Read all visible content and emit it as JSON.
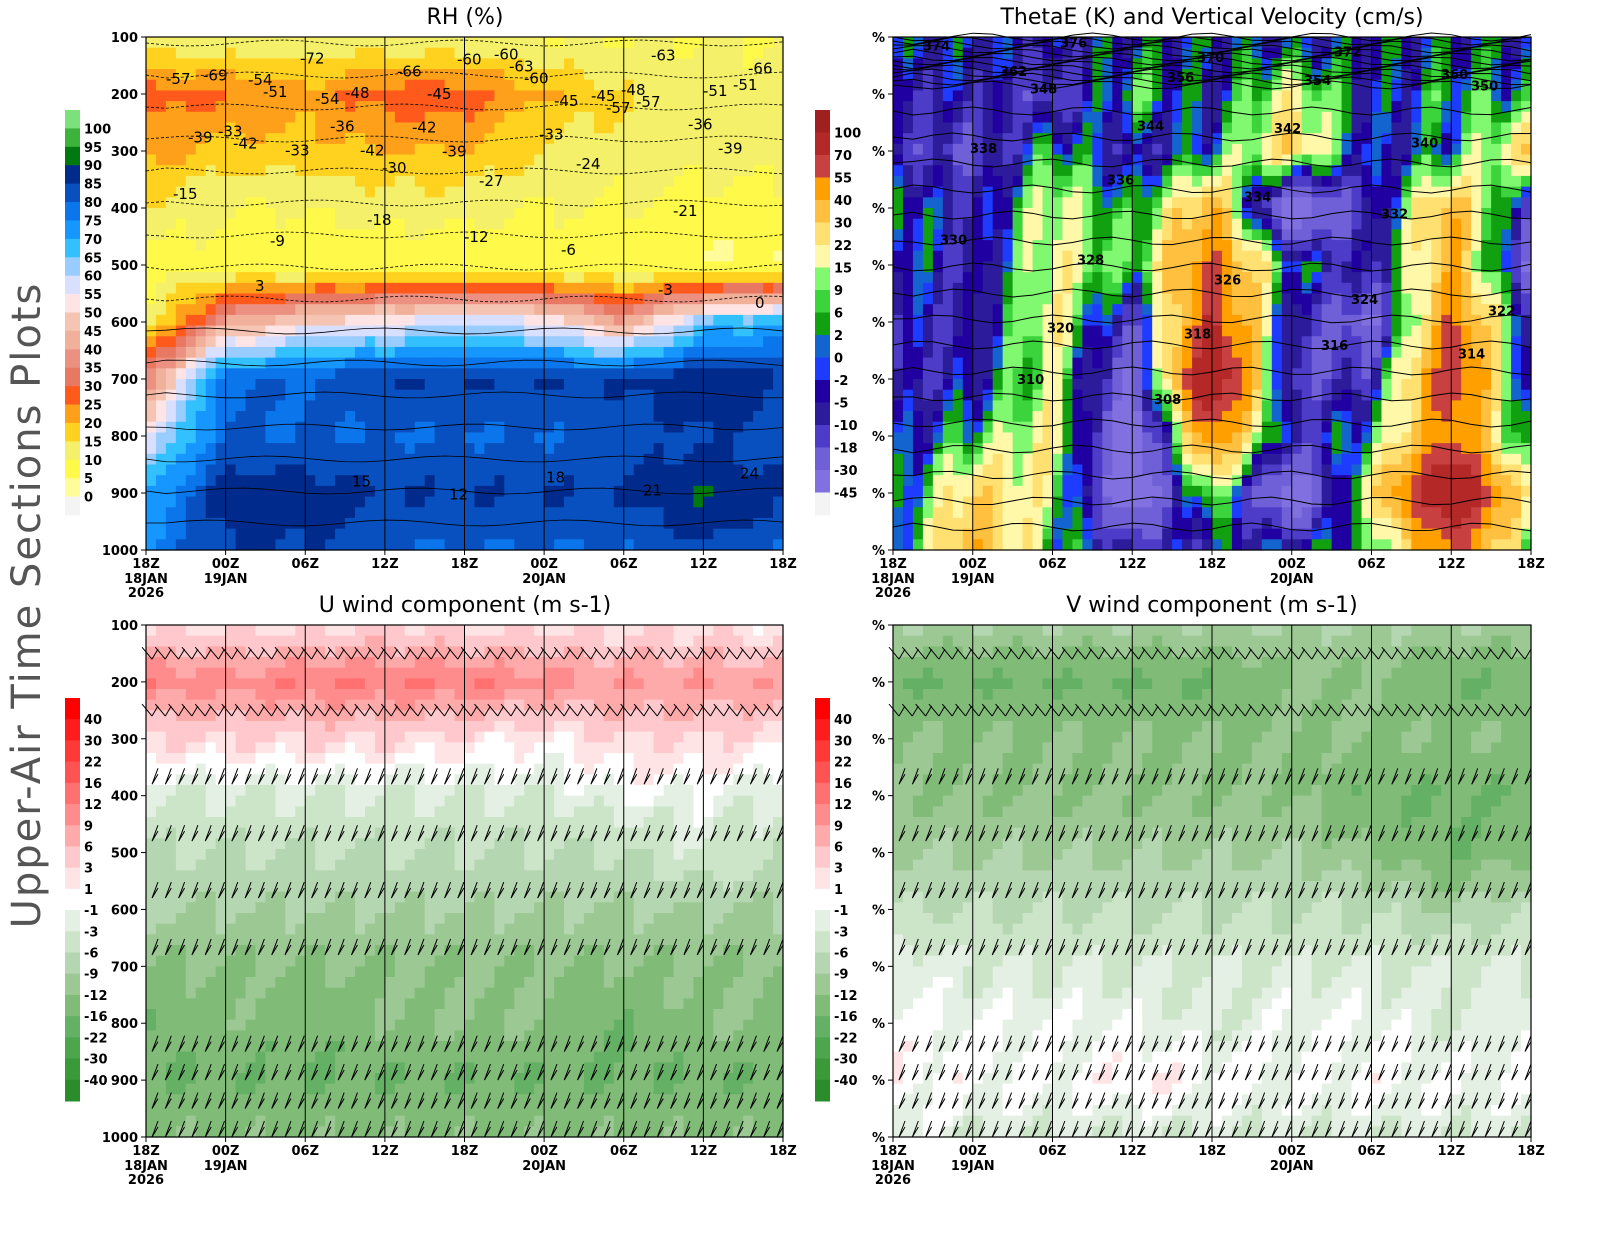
{
  "side_title": "Upper-Air Time Sections Plots",
  "chart_data": [
    {
      "type": "heatmap",
      "title": "RH (%)",
      "y_tick_labels": [
        "100",
        "200",
        "300",
        "400",
        "500",
        "600",
        "700",
        "800",
        "900",
        "1000"
      ],
      "x_tick_labels": [
        "18Z",
        "00Z",
        "06Z",
        "12Z",
        "18Z",
        "00Z",
        "06Z",
        "12Z",
        "18Z"
      ],
      "x_date_labels": [
        "18JAN\n2026",
        "19JAN",
        "",
        "",
        "",
        "20JAN",
        "",
        "",
        ""
      ],
      "pressure_levels": [
        100,
        200,
        300,
        400,
        500,
        600,
        700,
        800,
        900,
        1000
      ],
      "ylim": [
        1000,
        100
      ],
      "levels": [
        0,
        5,
        10,
        15,
        20,
        25,
        30,
        35,
        40,
        45,
        50,
        55,
        60,
        65,
        70,
        75,
        80,
        85,
        90,
        95,
        100
      ],
      "colors": [
        "#f4f4f4",
        "#fffc99",
        "#fff94a",
        "#f4f06a",
        "#ffd21f",
        "#ffa01a",
        "#ff5a1c",
        "#e87862",
        "#ec9182",
        "#f0b09a",
        "#f6c4b2",
        "#ffe4e6",
        "#d9e0ff",
        "#99ccff",
        "#33c0ff",
        "#1696ff",
        "#0b75ec",
        "#0850c0",
        "#002a8c",
        "#007a10",
        "#3cb43c",
        "#7ce07c"
      ],
      "grid": [
        [
          10,
          10,
          10,
          10,
          10,
          10,
          10,
          10,
          10
        ],
        [
          28,
          25,
          22,
          28,
          28,
          20,
          15,
          12,
          12
        ],
        [
          22,
          18,
          18,
          20,
          20,
          15,
          12,
          12,
          12
        ],
        [
          14,
          10,
          10,
          12,
          12,
          10,
          10,
          8,
          8
        ],
        [
          8,
          8,
          6,
          6,
          6,
          6,
          6,
          5,
          5
        ],
        [
          10,
          40,
          50,
          55,
          60,
          55,
          40,
          65,
          70
        ],
        [
          35,
          80,
          80,
          85,
          85,
          85,
          85,
          90,
          85
        ],
        [
          55,
          80,
          80,
          80,
          80,
          80,
          82,
          85,
          82
        ],
        [
          70,
          88,
          88,
          85,
          85,
          85,
          85,
          90,
          85
        ],
        [
          75,
          85,
          85,
          80,
          80,
          80,
          80,
          85,
          80
        ]
      ],
      "y_axis_labels_as": "pressure",
      "contour_labels": [
        "-57",
        "-51",
        "-42",
        "-60",
        "-45",
        "-63",
        "-66",
        "-54",
        "-48",
        "-39",
        "-33",
        "-57",
        "-51",
        "-42",
        "-36",
        "-45",
        "-60",
        "-48",
        "-39",
        "-33",
        "-54",
        "-42",
        "-63",
        "-57",
        "-51",
        "-69",
        "-72",
        "-66",
        "-60",
        "-45",
        "-36",
        "-39",
        "-33",
        "-30",
        "-27",
        "-24",
        "-21",
        "-15",
        "-9",
        "-18",
        "-12",
        "-6",
        "-3",
        "0",
        "3",
        "15",
        "12",
        "18",
        "21",
        "24"
      ]
    },
    {
      "type": "heatmap",
      "title": "ThetaE (K) and Vertical Velocity (cm/s)",
      "y_tick_labels": [
        "%",
        "%",
        "%",
        "%",
        "%",
        "%",
        "%",
        "%",
        "%",
        "%"
      ],
      "x_tick_labels": [
        "18Z",
        "00Z",
        "06Z",
        "12Z",
        "18Z",
        "00Z",
        "06Z",
        "12Z",
        "18Z"
      ],
      "x_date_labels": [
        "18JAN\n2026",
        "19JAN",
        "",
        "",
        "",
        "20JAN",
        "",
        "",
        ""
      ],
      "pressure_levels": [
        100,
        200,
        300,
        400,
        500,
        600,
        700,
        800,
        900,
        1000
      ],
      "levels": [
        -45,
        -30,
        -18,
        -10,
        -5,
        -2,
        0,
        2,
        6,
        9,
        15,
        22,
        30,
        40,
        55,
        70,
        100
      ],
      "colors": [
        "#f4f4f4",
        "#8070e0",
        "#7060d8",
        "#4c3cc8",
        "#2c1c9c",
        "#2000a0",
        "#1e3cff",
        "#1464d0",
        "#10a010",
        "#3cd43c",
        "#80f870",
        "#fff8a8",
        "#ffe070",
        "#ffc040",
        "#ffa000",
        "#c84040",
        "#b42828",
        "#a02020"
      ],
      "grid": [
        [
          0,
          -2,
          -5,
          -2,
          0,
          -5,
          -2,
          0,
          -2
        ],
        [
          -10,
          -5,
          -18,
          9,
          -5,
          20,
          -5,
          6,
          2
        ],
        [
          -10,
          -18,
          6,
          -10,
          2,
          30,
          -5,
          2,
          30
        ],
        [
          6,
          -10,
          20,
          2,
          40,
          -45,
          -10,
          40,
          -18
        ],
        [
          2,
          -10,
          20,
          6,
          55,
          2,
          -10,
          40,
          -30
        ],
        [
          -5,
          -10,
          22,
          -18,
          70,
          -10,
          -30,
          55,
          -5
        ],
        [
          -10,
          -5,
          15,
          -30,
          100,
          -18,
          -10,
          70,
          -10
        ],
        [
          -5,
          6,
          22,
          -45,
          55,
          -10,
          6,
          55,
          -5
        ],
        [
          -5,
          30,
          15,
          -45,
          15,
          -45,
          22,
          100,
          15
        ],
        [
          -2,
          40,
          6,
          -10,
          -5,
          0,
          2,
          55,
          6
        ]
      ],
      "thetae_contours": [
        {
          "value": "374",
          "p": 115
        },
        {
          "value": "376",
          "p": 110
        },
        {
          "value": "370",
          "p": 135
        },
        {
          "value": "372",
          "p": 125
        },
        {
          "value": "350",
          "p": 185
        },
        {
          "value": "348",
          "p": 190
        },
        {
          "value": "356",
          "p": 170
        },
        {
          "value": "354",
          "p": 175
        },
        {
          "value": "360",
          "p": 165
        },
        {
          "value": "362",
          "p": 160
        },
        {
          "value": "344",
          "p": 255
        },
        {
          "value": "342",
          "p": 260
        },
        {
          "value": "340",
          "p": 285
        },
        {
          "value": "338",
          "p": 295
        },
        {
          "value": "336",
          "p": 350
        },
        {
          "value": "334",
          "p": 380
        },
        {
          "value": "332",
          "p": 410
        },
        {
          "value": "330",
          "p": 455
        },
        {
          "value": "328",
          "p": 490
        },
        {
          "value": "326",
          "p": 525
        },
        {
          "value": "324",
          "p": 560
        },
        {
          "value": "322",
          "p": 580
        },
        {
          "value": "320",
          "p": 610
        },
        {
          "value": "318",
          "p": 620
        },
        {
          "value": "316",
          "p": 640
        },
        {
          "value": "314",
          "p": 655
        },
        {
          "value": "310",
          "p": 700
        },
        {
          "value": "308",
          "p": 735
        }
      ]
    },
    {
      "type": "heatmap",
      "title": "U wind component (m s-1)",
      "y_tick_labels": [
        "100",
        "200",
        "300",
        "400",
        "500",
        "600",
        "700",
        "800",
        "900",
        "1000"
      ],
      "x_tick_labels": [
        "18Z",
        "00Z",
        "06Z",
        "12Z",
        "18Z",
        "00Z",
        "06Z",
        "12Z",
        "18Z"
      ],
      "x_date_labels": [
        "18JAN\n2026",
        "19JAN",
        "",
        "",
        "",
        "20JAN",
        "",
        "",
        ""
      ],
      "pressure_levels": [
        100,
        200,
        300,
        400,
        500,
        600,
        700,
        800,
        900,
        1000
      ],
      "levels": [
        -40,
        -30,
        -22,
        -16,
        -12,
        -9,
        -6,
        -3,
        -1,
        1,
        3,
        6,
        9,
        12,
        16,
        22,
        30,
        40
      ],
      "colors": [
        "#2a8c2a",
        "#3a9a3a",
        "#4ca64c",
        "#64b064",
        "#80bc78",
        "#9cc894",
        "#b4d6b0",
        "#cce4c8",
        "#e4f0e4",
        "#ffffff",
        "#ffe4e6",
        "#ffc8cc",
        "#ffaaaa",
        "#ff8c8c",
        "#ff7070",
        "#ff5252",
        "#ff3838",
        "#ff1c1c",
        "#ff0000"
      ],
      "grid": [
        [
          2,
          2,
          2,
          3,
          2,
          2,
          2,
          2,
          1
        ],
        [
          12,
          10,
          12,
          12,
          12,
          10,
          9,
          9,
          8
        ],
        [
          3,
          3,
          3,
          3,
          2,
          1,
          3,
          3,
          2
        ],
        [
          -3,
          -3,
          -3,
          -3,
          -3,
          -3,
          -1,
          -1,
          -3
        ],
        [
          -6,
          -6,
          -6,
          -6,
          -6,
          -6,
          -6,
          -3,
          -6
        ],
        [
          -9,
          -9,
          -9,
          -9,
          -9,
          -9,
          -9,
          -9,
          -9
        ],
        [
          -12,
          -12,
          -12,
          -12,
          -12,
          -12,
          -12,
          -12,
          -12
        ],
        [
          -16,
          -12,
          -16,
          -12,
          -12,
          -12,
          -16,
          -12,
          -12
        ],
        [
          -16,
          -16,
          -16,
          -16,
          -16,
          -16,
          -16,
          -16,
          -16
        ],
        [
          -12,
          -12,
          -12,
          -12,
          -12,
          -12,
          -12,
          -12,
          -12
        ]
      ],
      "wind_barb_levels": [
        160,
        260,
        380,
        480,
        580,
        680,
        850,
        900,
        950,
        1000
      ]
    },
    {
      "type": "heatmap",
      "title": "V wind component (m s-1)",
      "y_tick_labels": [
        "%",
        "%",
        "%",
        "%",
        "%",
        "%",
        "%",
        "%",
        "%",
        "%"
      ],
      "x_tick_labels": [
        "18Z",
        "00Z",
        "06Z",
        "12Z",
        "18Z",
        "00Z",
        "06Z",
        "12Z",
        "18Z"
      ],
      "x_date_labels": [
        "18JAN\n2026",
        "19JAN",
        "",
        "",
        "",
        "20JAN",
        "",
        "",
        ""
      ],
      "pressure_levels": [
        100,
        200,
        300,
        400,
        500,
        600,
        700,
        800,
        900,
        1000
      ],
      "levels": [
        -40,
        -30,
        -22,
        -16,
        -12,
        -9,
        -6,
        -3,
        -1,
        1,
        3,
        6,
        9,
        12,
        16,
        22,
        30,
        40
      ],
      "colors": [
        "#2a8c2a",
        "#3a9a3a",
        "#4ca64c",
        "#64b064",
        "#80bc78",
        "#9cc894",
        "#b4d6b0",
        "#cce4c8",
        "#e4f0e4",
        "#ffffff",
        "#ffe4e6",
        "#ffc8cc",
        "#ffaaaa",
        "#ff8c8c",
        "#ff7070",
        "#ff5252",
        "#ff3838",
        "#ff1c1c",
        "#ff0000"
      ],
      "grid": [
        [
          -9,
          -9,
          -9,
          -9,
          -9,
          -9,
          -9,
          -9,
          -9
        ],
        [
          -16,
          -16,
          -16,
          -16,
          -16,
          -12,
          -12,
          -16,
          -16
        ],
        [
          -12,
          -12,
          -12,
          -12,
          -12,
          -12,
          -12,
          -12,
          -12
        ],
        [
          -12,
          -12,
          -12,
          -12,
          -12,
          -12,
          -16,
          -16,
          -16
        ],
        [
          -9,
          -9,
          -9,
          -9,
          -9,
          -9,
          -12,
          -16,
          -12
        ],
        [
          -6,
          -6,
          -6,
          -6,
          -6,
          -6,
          -6,
          -9,
          -6
        ],
        [
          -1,
          -3,
          -3,
          -3,
          -3,
          -3,
          -3,
          -3,
          -3
        ],
        [
          0,
          -1,
          -1,
          -1,
          -3,
          -1,
          -1,
          -3,
          -1
        ],
        [
          0,
          0,
          -1,
          1,
          0,
          -1,
          0,
          -1,
          -1
        ],
        [
          -1,
          -3,
          -3,
          -3,
          -3,
          -3,
          -3,
          -3,
          -3
        ]
      ],
      "wind_barb_levels": [
        160,
        260,
        380,
        480,
        580,
        680,
        850,
        900,
        950,
        1000
      ]
    }
  ]
}
